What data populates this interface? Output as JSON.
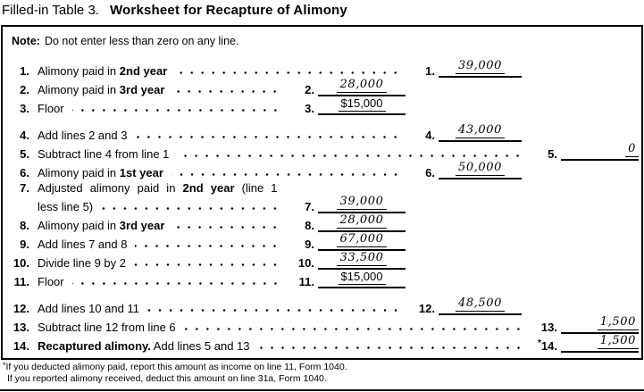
{
  "title": {
    "prefix": "Filled-in Table 3.",
    "main": "Worksheet for Recapture of Alimony"
  },
  "note": {
    "label": "Note:",
    "text": "Do not enter less than zero on any line."
  },
  "rows": [
    {
      "num": "1.",
      "parts": [
        [
          "Alimony paid in ",
          false
        ],
        [
          "2nd year",
          true
        ]
      ],
      "col": "b",
      "entry_num": "1.",
      "value": "39,000",
      "hand": true
    },
    {
      "num": "2.",
      "parts": [
        [
          "Alimony paid in ",
          false
        ],
        [
          "3rd year",
          true
        ]
      ],
      "col": "a",
      "entry_num": "2.",
      "value": "28,000",
      "hand": true
    },
    {
      "num": "3.",
      "parts": [
        [
          "Floor",
          false
        ]
      ],
      "col": "a",
      "entry_num": "3.",
      "value": "$15,000",
      "hand": false
    },
    {
      "num": "4.",
      "parts": [
        [
          "Add lines 2 and 3",
          false
        ]
      ],
      "col": "b",
      "entry_num": "4.",
      "value": "43,000",
      "hand": true,
      "gap": true
    },
    {
      "num": "5.",
      "parts": [
        [
          "Subtract line 4 from line 1",
          false
        ]
      ],
      "col": "c",
      "entry_num": "5.",
      "value": "0",
      "hand": true
    },
    {
      "num": "6.",
      "parts": [
        [
          "Alimony paid in ",
          false
        ],
        [
          "1st year",
          true
        ]
      ],
      "col": "b",
      "entry_num": "6.",
      "value": "50,000",
      "hand": true
    },
    {
      "num": "7.",
      "parts": [
        [
          "Adjusted alimony paid in ",
          false
        ],
        [
          "2nd year",
          true
        ],
        [
          " (line 1",
          false
        ]
      ],
      "wrap2": "less line 5)",
      "col": "a",
      "entry_num": "7.",
      "value": "39,000",
      "hand": true
    },
    {
      "num": "8.",
      "parts": [
        [
          "Alimony paid in ",
          false
        ],
        [
          "3rd year",
          true
        ]
      ],
      "col": "a",
      "entry_num": "8.",
      "value": "28,000",
      "hand": true
    },
    {
      "num": "9.",
      "parts": [
        [
          "Add lines 7 and 8",
          false
        ]
      ],
      "col": "a",
      "entry_num": "9.",
      "value": "67,000",
      "hand": true
    },
    {
      "num": "10.",
      "parts": [
        [
          "Divide line 9 by 2",
          false
        ]
      ],
      "col": "a",
      "entry_num": "10.",
      "value": "33,500",
      "hand": true
    },
    {
      "num": "11.",
      "parts": [
        [
          "Floor",
          false
        ]
      ],
      "col": "a",
      "entry_num": "11.",
      "value": "$15,000",
      "hand": false
    },
    {
      "num": "12.",
      "parts": [
        [
          "Add lines 10 and 11",
          false
        ]
      ],
      "col": "b",
      "entry_num": "12.",
      "value": "48,500",
      "hand": true,
      "gap": true
    },
    {
      "num": "13.",
      "parts": [
        [
          "Subtract line 12 from line 6",
          false
        ]
      ],
      "col": "c",
      "entry_num": "13.",
      "value": "1,500",
      "hand": true
    },
    {
      "num": "14.",
      "parts": [
        [
          "Recaptured alimony.",
          true
        ],
        [
          " Add lines 5 and 13",
          false
        ]
      ],
      "col": "c",
      "entry_num": "14.",
      "star": true,
      "value": "1,500",
      "hand": true
    }
  ],
  "footnotes": [
    {
      "marker": "*",
      "text": "If you deducted alimony paid, report this amount as income on line 11, Form 1040."
    },
    {
      "marker": "",
      "text": "If you reported alimony received, deduct this amount on line 31a, Form 1040."
    }
  ]
}
